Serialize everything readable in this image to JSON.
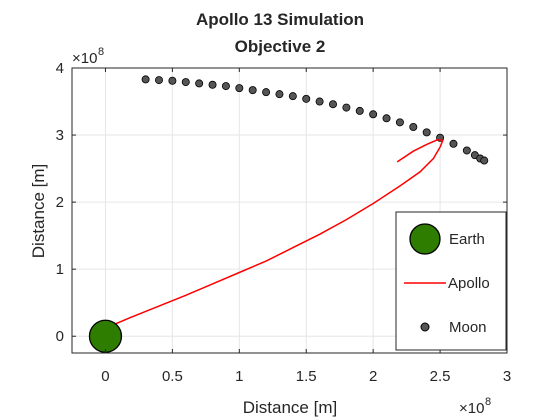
{
  "chart_data": {
    "type": "line",
    "title": "Apollo 13 Simulation",
    "subtitle": "Objective 2",
    "xlabel": "Distance [m]",
    "ylabel": "Distance [m]",
    "x_multiplier": "×10",
    "x_multiplier_exp": "8",
    "y_multiplier": "×10",
    "y_multiplier_exp": "8",
    "xlim": [
      -0.25,
      3.0
    ],
    "ylim": [
      -0.25,
      4.0
    ],
    "x_ticks": [
      0,
      0.5,
      1,
      1.5,
      2,
      2.5,
      3
    ],
    "x_tick_labels": [
      "0",
      "0.5",
      "1",
      "1.5",
      "2",
      "2.5",
      "3"
    ],
    "y_ticks": [
      0,
      1,
      2,
      3,
      4
    ],
    "y_tick_labels": [
      "0",
      "1",
      "2",
      "3",
      "4"
    ],
    "grid": true,
    "legend_position": "bottom-right",
    "units_note": "values in units of 1e8 m",
    "series": [
      {
        "name": "Earth",
        "kind": "marker",
        "color": "#2e7d00",
        "points": [
          [
            0,
            0
          ]
        ]
      },
      {
        "name": "Apollo",
        "kind": "line",
        "color": "#ff0000",
        "points": [
          [
            0.03,
            0.13
          ],
          [
            0.08,
            0.19
          ],
          [
            0.2,
            0.29
          ],
          [
            0.4,
            0.45
          ],
          [
            0.6,
            0.61
          ],
          [
            0.8,
            0.78
          ],
          [
            1.0,
            0.95
          ],
          [
            1.2,
            1.12
          ],
          [
            1.4,
            1.32
          ],
          [
            1.6,
            1.52
          ],
          [
            1.8,
            1.74
          ],
          [
            2.0,
            1.98
          ],
          [
            2.2,
            2.24
          ],
          [
            2.35,
            2.45
          ],
          [
            2.45,
            2.65
          ],
          [
            2.5,
            2.82
          ],
          [
            2.52,
            2.92
          ],
          [
            2.48,
            2.93
          ],
          [
            2.4,
            2.86
          ],
          [
            2.3,
            2.76
          ],
          [
            2.18,
            2.6
          ]
        ]
      },
      {
        "name": "Moon",
        "kind": "marker",
        "color": "#555555",
        "points": [
          [
            0.3,
            3.83
          ],
          [
            0.4,
            3.82
          ],
          [
            0.5,
            3.81
          ],
          [
            0.6,
            3.79
          ],
          [
            0.7,
            3.77
          ],
          [
            0.8,
            3.75
          ],
          [
            0.9,
            3.73
          ],
          [
            1.0,
            3.7
          ],
          [
            1.1,
            3.67
          ],
          [
            1.2,
            3.64
          ],
          [
            1.3,
            3.61
          ],
          [
            1.4,
            3.58
          ],
          [
            1.5,
            3.54
          ],
          [
            1.6,
            3.5
          ],
          [
            1.7,
            3.46
          ],
          [
            1.8,
            3.41
          ],
          [
            1.9,
            3.36
          ],
          [
            2.0,
            3.31
          ],
          [
            2.1,
            3.25
          ],
          [
            2.2,
            3.19
          ],
          [
            2.3,
            3.12
          ],
          [
            2.4,
            3.04
          ],
          [
            2.5,
            2.96
          ],
          [
            2.6,
            2.87
          ],
          [
            2.7,
            2.77
          ],
          [
            2.76,
            2.7
          ],
          [
            2.8,
            2.65
          ],
          [
            2.83,
            2.62
          ]
        ]
      }
    ]
  }
}
